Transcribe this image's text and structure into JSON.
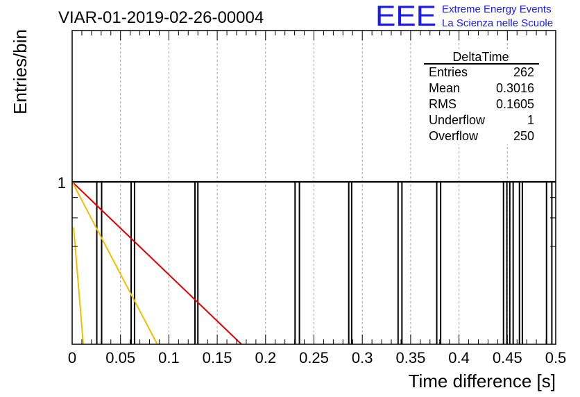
{
  "chart_data": {
    "type": "bar",
    "title": "VIAR-01-2019-02-26-00004",
    "xlabel": "Time difference [s]",
    "ylabel": "Entries/bin",
    "xlim": [
      0,
      0.5
    ],
    "log_y": true,
    "grid": true,
    "x_ticks": [
      "0",
      "0.05",
      "0.1",
      "0.15",
      "0.2",
      "0.25",
      "0.3",
      "0.35",
      "0.4",
      "0.45",
      "0.5"
    ],
    "y_ticks": [
      "1"
    ],
    "bins": [
      {
        "x0": 0.0255,
        "x1": 0.0305,
        "value": 1
      },
      {
        "x0": 0.061,
        "x1": 0.0645,
        "value": 1
      },
      {
        "x0": 0.127,
        "x1": 0.13,
        "value": 1
      },
      {
        "x0": 0.2305,
        "x1": 0.235,
        "value": 1
      },
      {
        "x0": 0.286,
        "x1": 0.289,
        "value": 1
      },
      {
        "x0": 0.337,
        "x1": 0.341,
        "value": 1
      },
      {
        "x0": 0.377,
        "x1": 0.381,
        "value": 1
      },
      {
        "x0": 0.446,
        "x1": 0.4495,
        "value": 1
      },
      {
        "x0": 0.4525,
        "x1": 0.456,
        "value": 1
      },
      {
        "x0": 0.4625,
        "x1": 0.4655,
        "value": 1
      },
      {
        "x0": 0.4905,
        "x1": 0.496,
        "value": 1
      }
    ],
    "baseline_value": 1,
    "fit_lines": [
      {
        "color": "#dd0000",
        "x": [
          0,
          0.175
        ],
        "y_level": [
          1,
          0
        ]
      },
      {
        "color": "#f0c000",
        "x": [
          0,
          0.088
        ],
        "y_level": [
          1,
          0
        ]
      },
      {
        "color": "#f0c000",
        "x": [
          0.0015,
          0.0115
        ],
        "y_level": [
          0.72,
          0
        ]
      }
    ],
    "stats_box": {
      "title": "DeltaTime",
      "rows": [
        {
          "label": "Entries",
          "value": "262"
        },
        {
          "label": "Mean",
          "value": "0.3016"
        },
        {
          "label": "RMS",
          "value": "0.1605"
        },
        {
          "label": "Underflow",
          "value": "1"
        },
        {
          "label": "Overflow",
          "value": "250"
        }
      ]
    }
  },
  "logo": {
    "text": "EEE",
    "line1": "Extreme Energy Events",
    "line2": "La Scienza nelle Scuole",
    "color": "#1a1aee"
  }
}
